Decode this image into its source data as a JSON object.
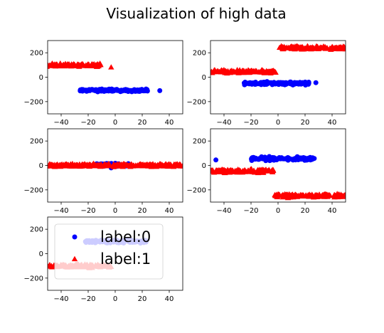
{
  "title": "Visualization of high data",
  "chart_data": {
    "type": "scatter",
    "title": "Visualization of high data",
    "grid": false,
    "xlim": [
      -50,
      50
    ],
    "ylim": [
      -300,
      300
    ],
    "xticks": [
      -40,
      -20,
      0,
      20,
      40
    ],
    "yticks": [
      -200,
      0,
      200
    ],
    "colors": {
      "label:0": "#0000ff",
      "label:1": "#ff0000"
    },
    "markers": {
      "label:0": "circle",
      "label:1": "triangle"
    },
    "legend": {
      "placement": "upper-left",
      "panel": 5,
      "entries": [
        "label:0",
        "label:1"
      ]
    },
    "panels": [
      {
        "series": [
          {
            "name": "label:0",
            "clusters": [
              {
                "x_range": [
                  -26,
                  24
                ],
                "y_center": -108,
                "y_spread": 8
              }
            ],
            "outliers": [
              [
                33,
                -110
              ]
            ]
          },
          {
            "name": "label:1",
            "clusters": [
              {
                "x_range": [
                  -53,
                  -10
                ],
                "y_center": 100,
                "y_spread": 10
              }
            ],
            "outliers": [
              [
                -3,
                82
              ]
            ]
          }
        ]
      },
      {
        "series": [
          {
            "name": "label:0",
            "clusters": [
              {
                "x_range": [
                  -25,
                  23
                ],
                "y_center": -50,
                "y_spread": 9
              }
            ],
            "outliers": [
              [
                28,
                -45
              ]
            ]
          },
          {
            "name": "label:1",
            "clusters": [
              {
                "x_range": [
                  -52,
                  -1
                ],
                "y_center": 45,
                "y_spread": 10
              },
              {
                "x_range": [
                  1,
                  53
                ],
                "y_center": 240,
                "y_spread": 10
              }
            ],
            "outliers": []
          }
        ]
      },
      {
        "series": [
          {
            "name": "label:0",
            "clusters": [
              {
                "x_range": [
                  -15,
                  10
                ],
                "y_center": 5,
                "y_spread": 10
              }
            ],
            "outliers": [
              [
                -3,
                -20
              ]
            ]
          },
          {
            "name": "label:1",
            "clusters": [
              {
                "x_range": [
                  -52,
                  52
                ],
                "y_center": 2,
                "y_spread": 10
              }
            ],
            "outliers": []
          }
        ]
      },
      {
        "series": [
          {
            "name": "label:0",
            "clusters": [
              {
                "x_range": [
                  -20,
                  27
                ],
                "y_center": 55,
                "y_spread": 10
              }
            ],
            "outliers": [
              [
                -46,
                45
              ]
            ]
          },
          {
            "name": "label:1",
            "clusters": [
              {
                "x_range": [
                  -52,
                  -3
                ],
                "y_center": -45,
                "y_spread": 11
              },
              {
                "x_range": [
                  -3,
                  52
                ],
                "y_center": -248,
                "y_spread": 11
              }
            ],
            "outliers": []
          }
        ]
      },
      {
        "series": [
          {
            "name": "label:0",
            "clusters": [
              {
                "x_range": [
                  -22,
                  23
                ],
                "y_center": 100,
                "y_spread": 9
              }
            ],
            "outliers": []
          },
          {
            "name": "label:1",
            "clusters": [
              {
                "x_range": [
                  -52,
                  -3
                ],
                "y_center": -100,
                "y_spread": 11
              }
            ],
            "outliers": []
          }
        ]
      }
    ]
  }
}
